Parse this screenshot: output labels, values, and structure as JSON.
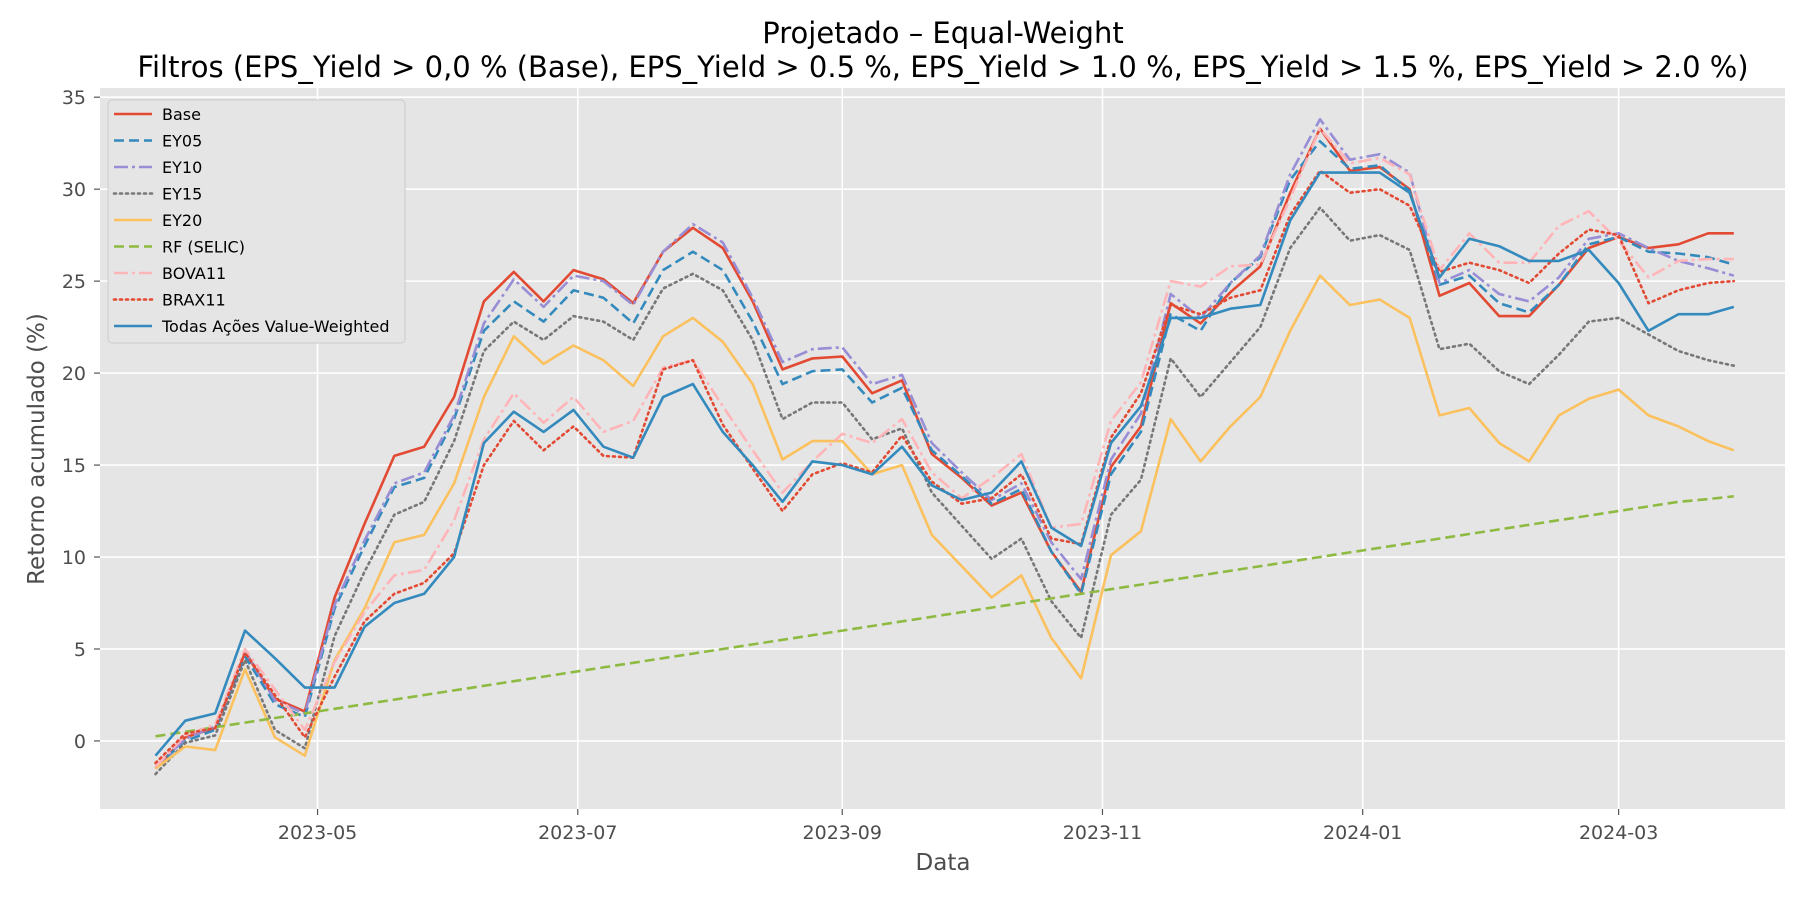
{
  "chart_data": {
    "type": "line",
    "title": "Projetado – Equal-Weight",
    "subtitle": "Filtros (EPS_Yield > 0,0 % (Base), EPS_Yield > 0.5 %, EPS_Yield > 1.0 %, EPS_Yield > 1.5 %, EPS_Yield > 2.0 %)",
    "xlabel": "Data",
    "ylabel": "Retorno acumulado (%)",
    "x_type": "date",
    "xlim": [
      "2023-03-11",
      "2024-04-09"
    ],
    "ylim": [
      -3.7,
      35.5
    ],
    "x_ticks": [
      {
        "value": "2023-05-01",
        "label": "2023-05"
      },
      {
        "value": "2023-07-01",
        "label": "2023-07"
      },
      {
        "value": "2023-09-01",
        "label": "2023-09"
      },
      {
        "value": "2023-11-01",
        "label": "2023-11"
      },
      {
        "value": "2024-01-01",
        "label": "2024-01"
      },
      {
        "value": "2024-03-01",
        "label": "2024-03"
      }
    ],
    "y_ticks": [
      0,
      5,
      10,
      15,
      20,
      25,
      30,
      35
    ],
    "grid": true,
    "background": "#e5e5e5",
    "legend_position": "top-left",
    "x": [
      "2023-03-24",
      "2023-03-31",
      "2023-04-07",
      "2023-04-14",
      "2023-04-21",
      "2023-04-28",
      "2023-05-05",
      "2023-05-12",
      "2023-05-19",
      "2023-05-26",
      "2023-06-02",
      "2023-06-09",
      "2023-06-16",
      "2023-06-23",
      "2023-06-30",
      "2023-07-07",
      "2023-07-14",
      "2023-07-21",
      "2023-07-28",
      "2023-08-04",
      "2023-08-11",
      "2023-08-18",
      "2023-08-25",
      "2023-09-01",
      "2023-09-08",
      "2023-09-15",
      "2023-09-22",
      "2023-09-29",
      "2023-10-06",
      "2023-10-13",
      "2023-10-20",
      "2023-10-27",
      "2023-11-03",
      "2023-11-10",
      "2023-11-17",
      "2023-11-24",
      "2023-12-01",
      "2023-12-08",
      "2023-12-15",
      "2023-12-22",
      "2023-12-29",
      "2024-01-05",
      "2024-01-12",
      "2024-01-19",
      "2024-01-26",
      "2024-02-02",
      "2024-02-09",
      "2024-02-16",
      "2024-02-23",
      "2024-03-01",
      "2024-03-08",
      "2024-03-15",
      "2024-03-22",
      "2024-03-28"
    ],
    "series": [
      {
        "name": "Base",
        "color": "#E24A33",
        "dash": "solid",
        "values": [
          -1.5,
          0.2,
          0.7,
          4.8,
          2.3,
          1.6,
          7.8,
          11.8,
          15.5,
          16.0,
          18.7,
          23.9,
          25.5,
          23.9,
          25.6,
          25.1,
          23.8,
          26.6,
          27.9,
          26.8,
          23.9,
          20.2,
          20.8,
          20.9,
          18.9,
          19.6,
          15.6,
          14.3,
          12.8,
          13.5,
          10.3,
          8.1,
          14.9,
          17.1,
          23.8,
          22.7,
          24.4,
          25.8,
          29.8,
          33.3,
          31.0,
          31.2,
          30.0,
          24.2,
          24.9,
          23.1,
          23.1,
          24.8,
          26.8,
          27.4,
          26.8,
          27.0,
          27.6,
          27.6
        ]
      },
      {
        "name": "EY05",
        "color": "#348ABD",
        "dash": "10,5",
        "values": [
          -1.4,
          0.0,
          0.6,
          4.6,
          2.0,
          1.3,
          7.2,
          10.6,
          13.8,
          14.3,
          17.5,
          22.3,
          23.9,
          22.8,
          24.5,
          24.1,
          22.7,
          25.6,
          26.6,
          25.6,
          22.8,
          19.4,
          20.1,
          20.2,
          18.4,
          19.2,
          15.8,
          14.4,
          12.9,
          13.7,
          10.3,
          8.0,
          14.5,
          16.8,
          23.2,
          22.3,
          24.9,
          26.3,
          30.5,
          32.6,
          31.1,
          31.3,
          29.9,
          24.8,
          25.3,
          23.8,
          23.3,
          24.8,
          27.0,
          27.4,
          26.6,
          26.5,
          26.3,
          25.9
        ]
      },
      {
        "name": "EY10",
        "color": "#988ED5",
        "dash": "14,4,3,4",
        "values": [
          -1.4,
          0.1,
          0.8,
          4.9,
          2.2,
          1.5,
          7.4,
          10.9,
          14.0,
          14.6,
          17.7,
          22.7,
          25.1,
          23.6,
          25.3,
          25.0,
          23.7,
          26.6,
          28.1,
          27.1,
          24.1,
          20.6,
          21.3,
          21.4,
          19.4,
          19.9,
          16.2,
          14.6,
          13.1,
          14.0,
          10.8,
          8.8,
          15.3,
          17.8,
          24.3,
          23.0,
          24.9,
          26.4,
          30.8,
          33.8,
          31.6,
          31.9,
          30.9,
          24.9,
          25.6,
          24.3,
          23.9,
          25.2,
          27.3,
          27.6,
          26.8,
          26.1,
          25.7,
          25.3
        ]
      },
      {
        "name": "EY15",
        "color": "#777777",
        "dash": "2,4",
        "values": [
          -1.8,
          -0.1,
          0.3,
          4.4,
          0.6,
          -0.4,
          5.7,
          9.2,
          12.3,
          13.0,
          16.3,
          21.2,
          22.8,
          21.8,
          23.1,
          22.8,
          21.8,
          24.6,
          25.4,
          24.5,
          21.8,
          17.5,
          18.4,
          18.4,
          16.4,
          17.0,
          13.5,
          11.7,
          9.9,
          11.0,
          7.6,
          5.6,
          12.3,
          14.2,
          20.8,
          18.7,
          20.6,
          22.5,
          26.8,
          29.0,
          27.2,
          27.5,
          26.7,
          21.3,
          21.6,
          20.1,
          19.4,
          21.0,
          22.8,
          23.0,
          22.1,
          21.2,
          20.7,
          20.4
        ]
      },
      {
        "name": "EY20",
        "color": "#FBC15E",
        "dash": "solid",
        "values": [
          -1.5,
          -0.3,
          -0.5,
          3.9,
          0.2,
          -0.8,
          4.4,
          7.2,
          10.8,
          11.2,
          14.0,
          18.7,
          22.0,
          20.5,
          21.5,
          20.7,
          19.3,
          22.0,
          23.0,
          21.7,
          19.4,
          15.3,
          16.3,
          16.3,
          14.5,
          15.0,
          11.2,
          9.5,
          7.8,
          9.0,
          5.6,
          3.4,
          10.1,
          11.4,
          17.5,
          15.2,
          17.1,
          18.7,
          22.3,
          25.3,
          23.7,
          24.0,
          23.0,
          17.7,
          18.1,
          16.2,
          15.2,
          17.7,
          18.6,
          19.1,
          17.7,
          17.1,
          16.3,
          15.8
        ]
      },
      {
        "name": "RF (SELIC)",
        "color": "#8EBA42",
        "dash": "10,5",
        "values": [
          0.25,
          0.5,
          0.75,
          1.0,
          1.25,
          1.5,
          1.75,
          2.0,
          2.25,
          2.5,
          2.75,
          3.0,
          3.25,
          3.5,
          3.75,
          4.0,
          4.25,
          4.5,
          4.75,
          5.0,
          5.25,
          5.5,
          5.75,
          6.0,
          6.25,
          6.5,
          6.75,
          7.0,
          7.25,
          7.5,
          7.75,
          8.0,
          8.25,
          8.5,
          8.75,
          9.0,
          9.25,
          9.5,
          9.75,
          10.0,
          10.25,
          10.5,
          10.75,
          11.0,
          11.25,
          11.5,
          11.75,
          12.0,
          12.25,
          12.5,
          12.75,
          13.0,
          13.15,
          13.3
        ]
      },
      {
        "name": "BOVA11",
        "color": "#FFB5B8",
        "dash": "14,4,3,4",
        "values": [
          -1.4,
          0.3,
          0.9,
          5.0,
          2.8,
          0.6,
          4.3,
          7.0,
          9.0,
          9.3,
          12.0,
          16.4,
          18.9,
          17.3,
          18.7,
          16.8,
          17.4,
          20.3,
          20.7,
          18.2,
          15.8,
          13.5,
          15.2,
          16.7,
          16.2,
          17.5,
          14.6,
          13.2,
          14.3,
          15.6,
          11.6,
          11.8,
          17.4,
          19.5,
          25.0,
          24.7,
          25.8,
          25.9,
          29.5,
          33.3,
          31.4,
          31.7,
          30.8,
          25.6,
          27.6,
          26.0,
          26.0,
          28.0,
          28.8,
          27.2,
          25.2,
          26.1,
          26.2,
          26.2
        ]
      },
      {
        "name": "BRAX11",
        "color": "#E24A33",
        "dash": "2,4",
        "values": [
          -1.2,
          0.4,
          0.7,
          4.8,
          2.5,
          0.2,
          3.5,
          6.5,
          8.0,
          8.6,
          10.2,
          15.0,
          17.4,
          15.8,
          17.1,
          15.5,
          15.4,
          20.2,
          20.7,
          17.2,
          14.8,
          12.5,
          14.5,
          15.1,
          14.6,
          16.6,
          14.1,
          12.9,
          13.2,
          14.5,
          11.0,
          10.7,
          16.5,
          18.9,
          23.7,
          23.2,
          24.1,
          24.5,
          28.6,
          31.0,
          29.8,
          30.0,
          29.1,
          25.5,
          26.0,
          25.6,
          24.9,
          26.5,
          27.8,
          27.5,
          23.8,
          24.5,
          24.9,
          25.0
        ]
      },
      {
        "name": "Todas Ações Value-Weighted",
        "color": "#348ABD",
        "dash": "solid",
        "values": [
          -0.8,
          1.1,
          1.5,
          6.0,
          4.5,
          2.9,
          2.9,
          6.2,
          7.5,
          8.0,
          10.0,
          16.2,
          17.9,
          16.8,
          18.0,
          16.0,
          15.4,
          18.7,
          19.4,
          16.8,
          15.0,
          13.0,
          15.2,
          15.0,
          14.5,
          16.0,
          13.9,
          13.1,
          13.5,
          15.2,
          11.6,
          10.6,
          16.2,
          18.2,
          23.0,
          23.0,
          23.5,
          23.7,
          28.3,
          30.9,
          30.9,
          30.9,
          29.8,
          25.2,
          27.3,
          26.9,
          26.1,
          26.1,
          26.7,
          24.9,
          22.3,
          23.2,
          23.2,
          23.6
        ]
      }
    ]
  }
}
